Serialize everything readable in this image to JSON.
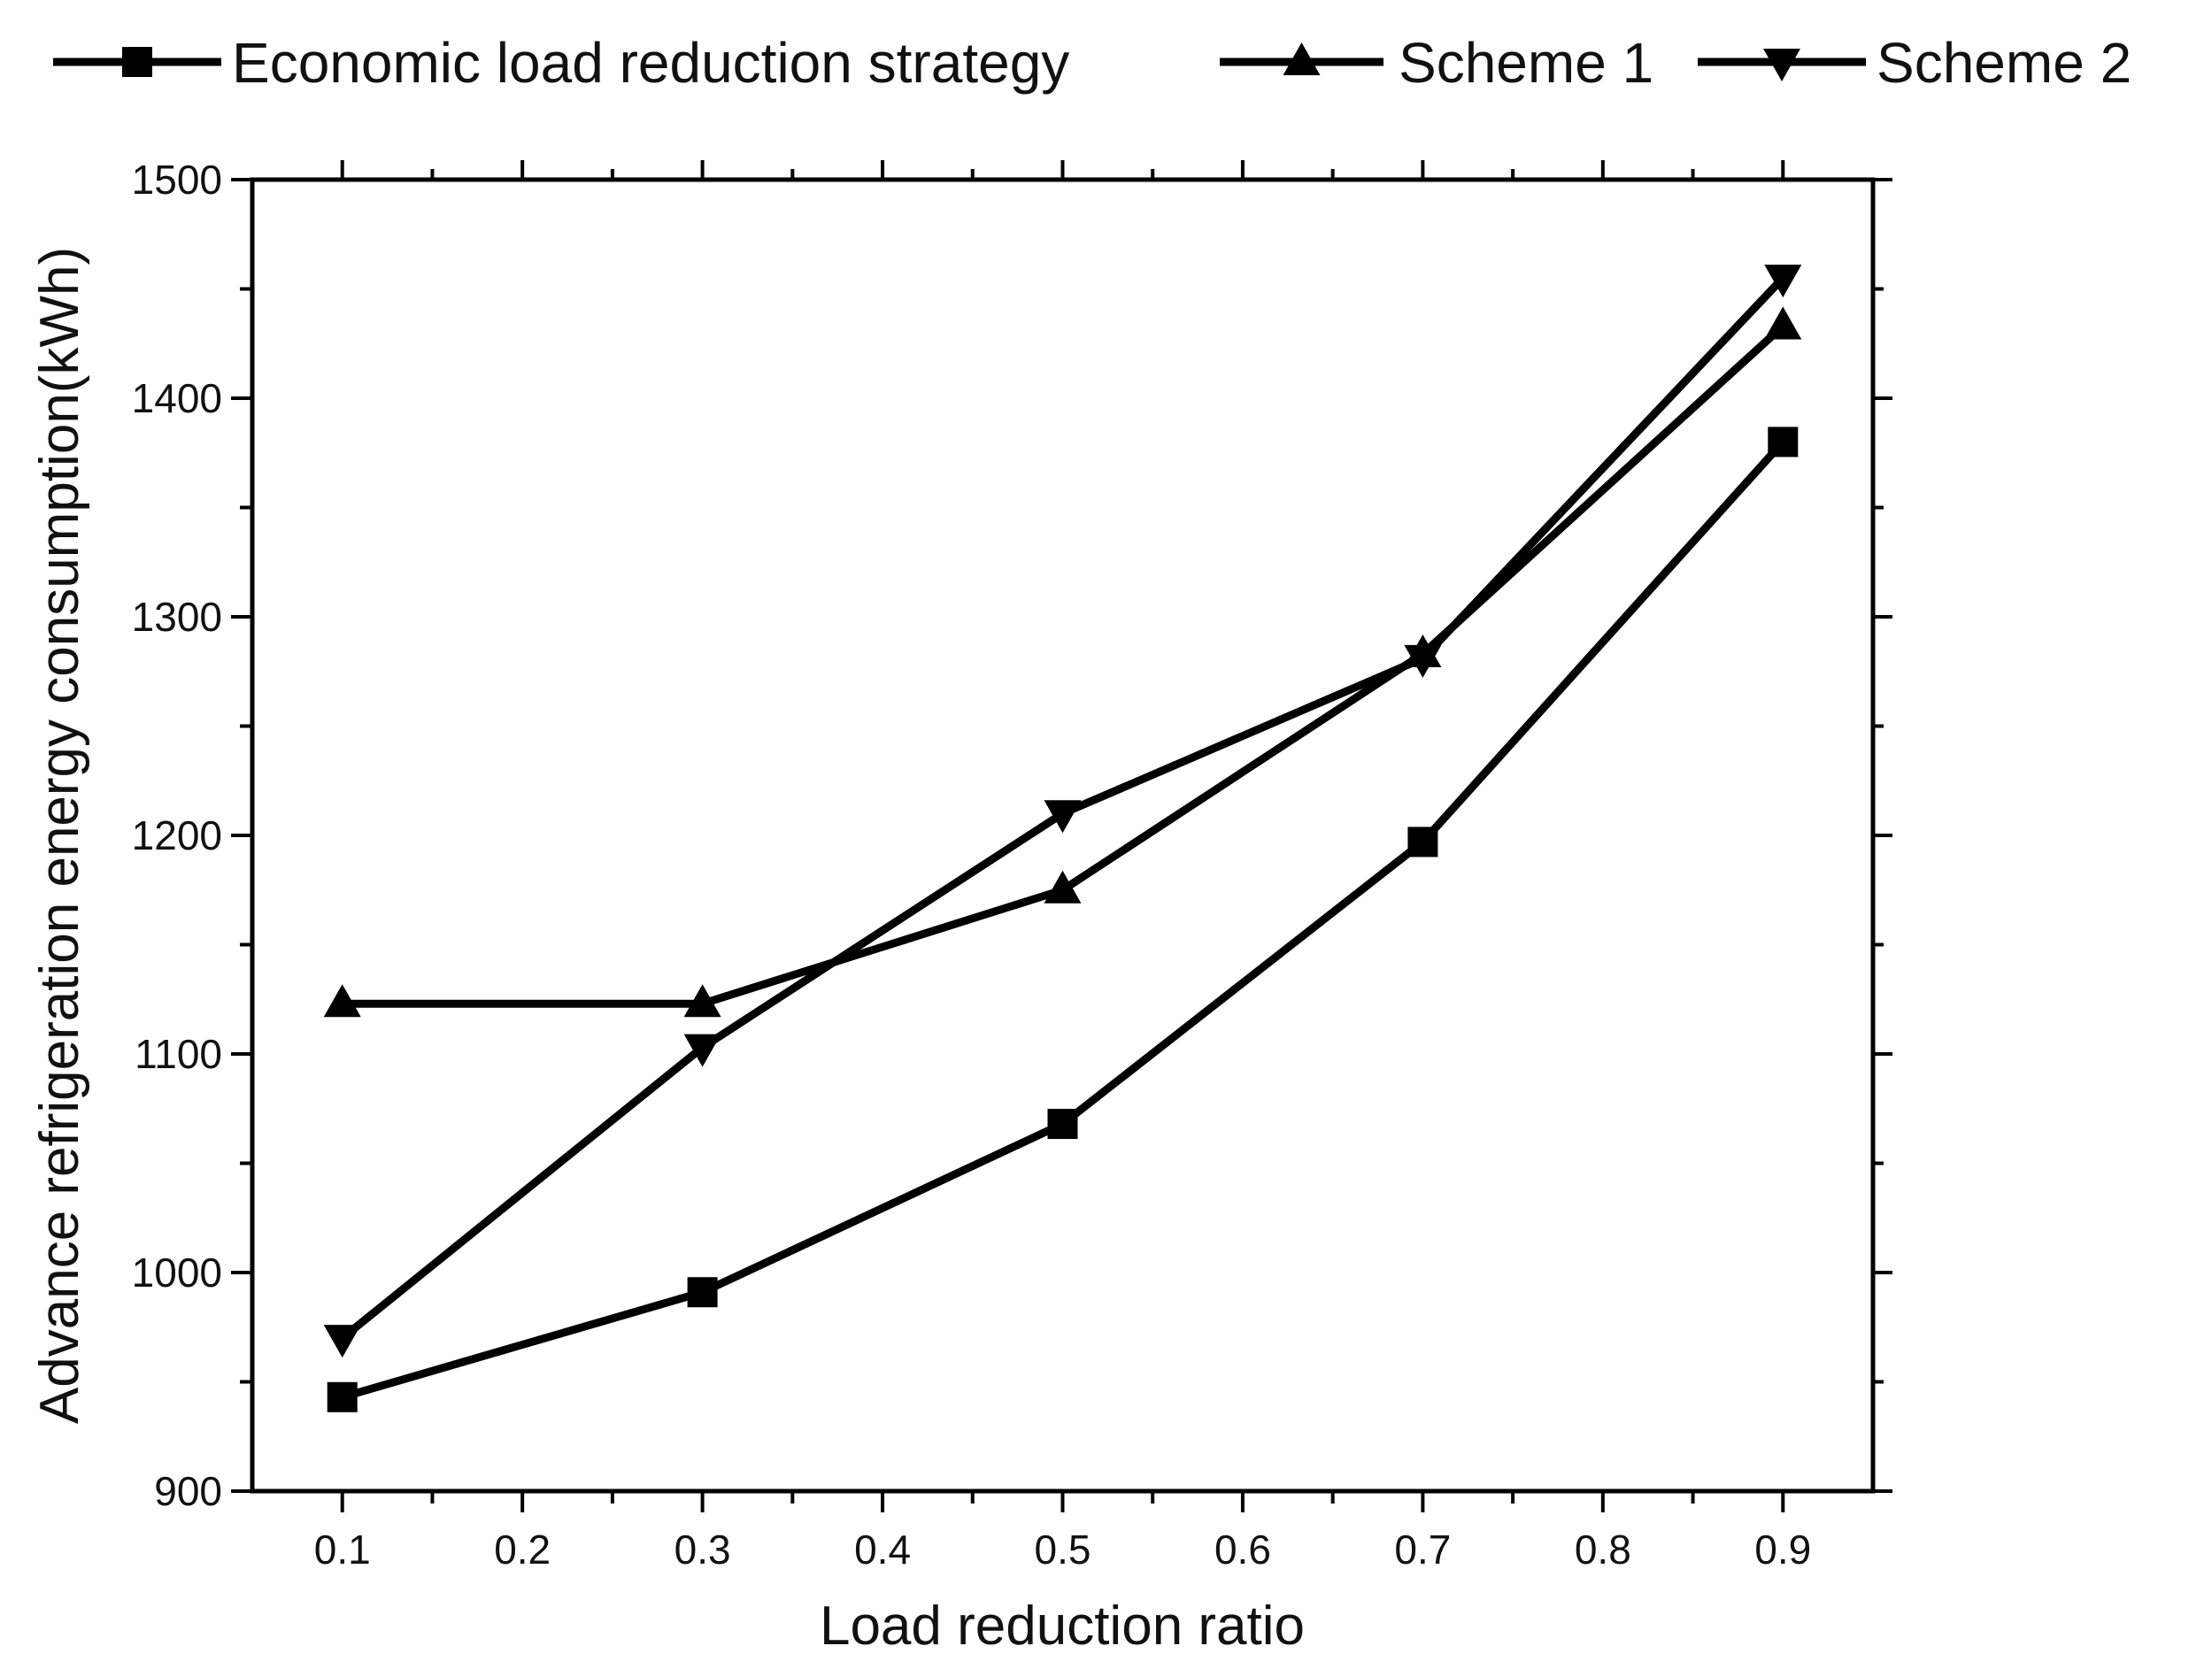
{
  "chart_data": {
    "type": "line",
    "title": "",
    "xlabel": "Load reduction ratio",
    "ylabel": "Advance refrigeration energy consumption(kWh)",
    "xlim": [
      0.05,
      0.95
    ],
    "ylim": [
      900,
      1500
    ],
    "x": [
      0.1,
      0.3,
      0.5,
      0.7,
      0.9
    ],
    "x_ticks": [
      "0.1",
      "0.2",
      "0.3",
      "0.4",
      "0.5",
      "0.6",
      "0.7",
      "0.8",
      "0.9"
    ],
    "y_ticks": [
      "900",
      "1000",
      "1100",
      "1200",
      "1300",
      "1400",
      "1500"
    ],
    "legend_position": "top",
    "series": [
      {
        "name": "Economic load reduction strategy",
        "marker": "square",
        "values": [
          943,
          991,
          1068,
          1197,
          1380
        ]
      },
      {
        "name": "Scheme 1",
        "marker": "triangle-up",
        "values": [
          1123,
          1123,
          1175,
          1283,
          1433
        ]
      },
      {
        "name": "Scheme 2",
        "marker": "triangle-down",
        "values": [
          970,
          1103,
          1210,
          1281,
          1455
        ]
      }
    ],
    "line_color": "#000000"
  }
}
